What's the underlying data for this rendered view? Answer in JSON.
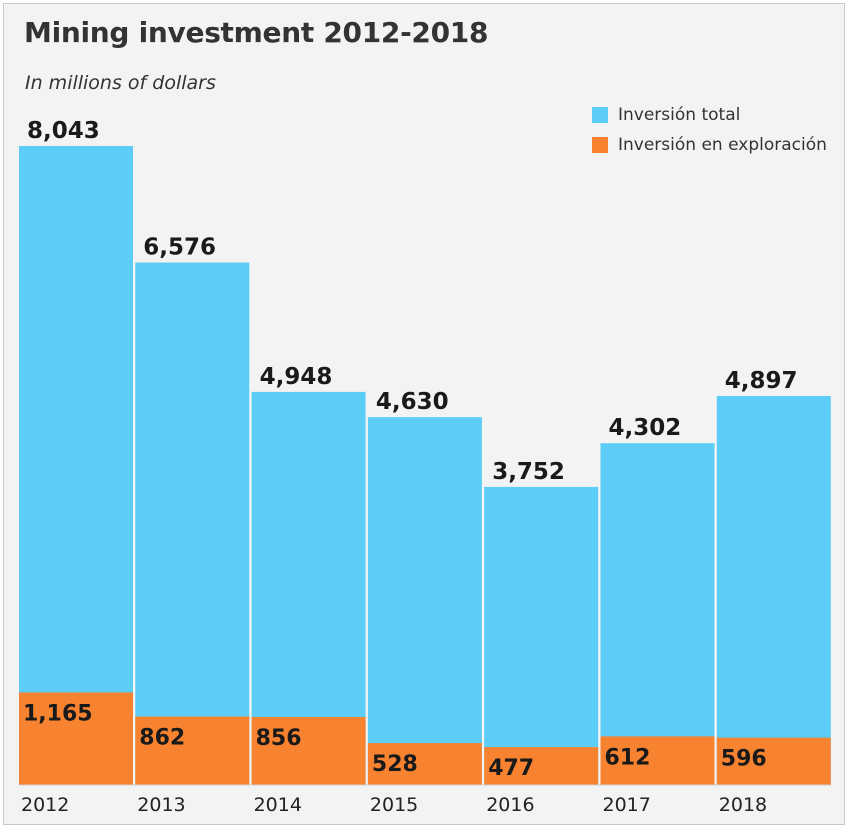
{
  "title": "Mining investment 2012-2018",
  "subtitle": "In millions of dollars",
  "colors": {
    "background": "#f3f3f3",
    "total": "#5bcdf7",
    "exploration": "#f7822f"
  },
  "legend": [
    {
      "label": "Inversión total",
      "color": "#5bcdf7"
    },
    {
      "label": "Inversión en exploración",
      "color": "#f7822f"
    }
  ],
  "chart_data": {
    "type": "bar",
    "title": "Mining investment 2012-2018",
    "subtitle": "In millions of dollars",
    "categories": [
      "2012",
      "2013",
      "2014",
      "2015",
      "2016",
      "2017",
      "2018"
    ],
    "series": [
      {
        "name": "Inversión total",
        "values": [
          8043,
          6576,
          4948,
          4630,
          3752,
          4302,
          4897
        ],
        "labels": [
          "8,043",
          "6,576",
          "4,948",
          "4,630",
          "3,752",
          "4,302",
          "4,897"
        ]
      },
      {
        "name": "Inversión en exploración",
        "values": [
          1165,
          862,
          856,
          528,
          477,
          612,
          596
        ],
        "labels": [
          "1,165",
          "862",
          "856",
          "528",
          "477",
          "612",
          "596"
        ]
      }
    ],
    "overlay": true,
    "grid": false,
    "legend_position": "top-right",
    "ylim": [
      0,
      8043
    ]
  }
}
